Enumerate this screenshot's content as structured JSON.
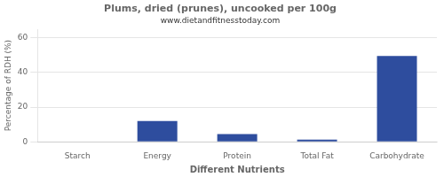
{
  "chart_data": {
    "type": "bar",
    "title": "Plums, dried (prunes), uncooked per 100g",
    "subtitle": "www.dietandfitnesstoday.com",
    "xlabel": "Different Nutrients",
    "ylabel": "Percentage of RDH (%)",
    "categories": [
      "Starch",
      "Energy",
      "Protein",
      "Total Fat",
      "Carbohydrate"
    ],
    "values": [
      0,
      12,
      4.5,
      1.2,
      49.5
    ],
    "color": "#2e4d9e",
    "ylim": [
      0,
      65
    ],
    "yticks": [
      0,
      20,
      40,
      60
    ],
    "grid": true
  }
}
